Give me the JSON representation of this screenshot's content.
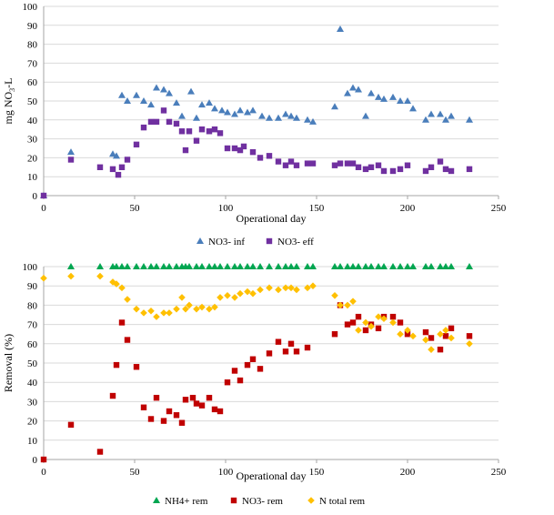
{
  "chart_data": [
    {
      "type": "scatter",
      "xlabel": "Operational day",
      "ylabel": "mg NO3-L",
      "xlim": [
        0,
        250
      ],
      "ylim": [
        0,
        100
      ],
      "x_ticks": [
        "0",
        "50",
        "100",
        "150",
        "200",
        "250"
      ],
      "y_ticks": [
        "0",
        "10",
        "20",
        "30",
        "40",
        "50",
        "60",
        "70",
        "80",
        "90",
        "100"
      ],
      "grid": "horizontal",
      "legend_position": "bottom",
      "series": [
        {
          "name": "NO3- inf",
          "marker": "triangle",
          "color": "#4a7ebb",
          "points": [
            [
              0,
              0
            ],
            [
              15,
              23
            ],
            [
              38,
              22
            ],
            [
              40,
              21
            ],
            [
              43,
              53
            ],
            [
              46,
              50
            ],
            [
              51,
              53
            ],
            [
              55,
              50
            ],
            [
              59,
              48
            ],
            [
              62,
              57
            ],
            [
              66,
              56
            ],
            [
              69,
              54
            ],
            [
              73,
              49
            ],
            [
              76,
              42
            ],
            [
              81,
              55
            ],
            [
              84,
              41
            ],
            [
              87,
              48
            ],
            [
              91,
              49
            ],
            [
              94,
              46
            ],
            [
              98,
              45
            ],
            [
              101,
              44
            ],
            [
              105,
              43
            ],
            [
              108,
              45
            ],
            [
              112,
              44
            ],
            [
              115,
              45
            ],
            [
              120,
              42
            ],
            [
              124,
              41
            ],
            [
              129,
              41
            ],
            [
              133,
              43
            ],
            [
              136,
              42
            ],
            [
              139,
              41
            ],
            [
              145,
              40
            ],
            [
              148,
              39
            ],
            [
              160,
              47
            ],
            [
              163,
              88
            ],
            [
              167,
              54
            ],
            [
              170,
              57
            ],
            [
              173,
              56
            ],
            [
              177,
              42
            ],
            [
              180,
              54
            ],
            [
              184,
              52
            ],
            [
              187,
              51
            ],
            [
              192,
              52
            ],
            [
              196,
              50
            ],
            [
              200,
              50
            ],
            [
              203,
              46
            ],
            [
              210,
              40
            ],
            [
              213,
              43
            ],
            [
              218,
              43
            ],
            [
              221,
              40
            ],
            [
              224,
              42
            ],
            [
              234,
              40
            ]
          ]
        },
        {
          "name": "NO3- eff",
          "marker": "square",
          "color": "#7030a0",
          "points": [
            [
              0,
              0
            ],
            [
              15,
              19
            ],
            [
              31,
              15
            ],
            [
              38,
              14
            ],
            [
              41,
              11
            ],
            [
              43,
              15
            ],
            [
              46,
              19
            ],
            [
              51,
              27
            ],
            [
              55,
              36
            ],
            [
              59,
              39
            ],
            [
              62,
              39
            ],
            [
              66,
              45
            ],
            [
              69,
              39
            ],
            [
              73,
              38
            ],
            [
              76,
              34
            ],
            [
              78,
              24
            ],
            [
              80,
              34
            ],
            [
              84,
              29
            ],
            [
              87,
              35
            ],
            [
              91,
              34
            ],
            [
              94,
              35
            ],
            [
              97,
              33
            ],
            [
              101,
              25
            ],
            [
              105,
              25
            ],
            [
              108,
              24
            ],
            [
              110,
              26
            ],
            [
              115,
              23
            ],
            [
              119,
              20
            ],
            [
              124,
              21
            ],
            [
              129,
              18
            ],
            [
              133,
              16
            ],
            [
              136,
              18
            ],
            [
              139,
              16
            ],
            [
              145,
              17
            ],
            [
              148,
              17
            ],
            [
              160,
              16
            ],
            [
              163,
              17
            ],
            [
              167,
              17
            ],
            [
              170,
              17
            ],
            [
              173,
              15
            ],
            [
              177,
              14
            ],
            [
              180,
              15
            ],
            [
              184,
              16
            ],
            [
              187,
              13
            ],
            [
              192,
              13
            ],
            [
              196,
              14
            ],
            [
              200,
              16
            ],
            [
              210,
              13
            ],
            [
              213,
              15
            ],
            [
              218,
              18
            ],
            [
              221,
              14
            ],
            [
              224,
              13
            ],
            [
              234,
              14
            ]
          ]
        }
      ]
    },
    {
      "type": "scatter",
      "xlabel": "Operational day",
      "ylabel": "Removal (%)",
      "xlim": [
        0,
        250
      ],
      "ylim": [
        0,
        100
      ],
      "x_ticks": [
        "0",
        "50",
        "100",
        "150",
        "200",
        "250"
      ],
      "y_ticks": [
        "0",
        "10",
        "20",
        "30",
        "40",
        "50",
        "60",
        "70",
        "80",
        "90",
        "100"
      ],
      "grid": "horizontal",
      "legend_position": "bottom",
      "series": [
        {
          "name": "NH4+ rem",
          "marker": "triangle",
          "color": "#00a651",
          "points": [
            [
              15,
              100
            ],
            [
              31,
              100
            ],
            [
              38,
              100
            ],
            [
              40,
              100
            ],
            [
              43,
              100
            ],
            [
              46,
              100
            ],
            [
              51,
              100
            ],
            [
              55,
              100
            ],
            [
              59,
              100
            ],
            [
              62,
              100
            ],
            [
              66,
              100
            ],
            [
              69,
              100
            ],
            [
              73,
              100
            ],
            [
              76,
              100
            ],
            [
              78,
              100
            ],
            [
              80,
              100
            ],
            [
              84,
              100
            ],
            [
              87,
              100
            ],
            [
              91,
              100
            ],
            [
              94,
              100
            ],
            [
              97,
              100
            ],
            [
              101,
              100
            ],
            [
              105,
              100
            ],
            [
              108,
              100
            ],
            [
              112,
              100
            ],
            [
              115,
              100
            ],
            [
              119,
              100
            ],
            [
              124,
              100
            ],
            [
              129,
              100
            ],
            [
              133,
              100
            ],
            [
              136,
              100
            ],
            [
              139,
              100
            ],
            [
              145,
              100
            ],
            [
              148,
              100
            ],
            [
              160,
              100
            ],
            [
              163,
              100
            ],
            [
              167,
              100
            ],
            [
              170,
              100
            ],
            [
              173,
              100
            ],
            [
              177,
              100
            ],
            [
              180,
              100
            ],
            [
              184,
              100
            ],
            [
              187,
              100
            ],
            [
              192,
              100
            ],
            [
              196,
              100
            ],
            [
              200,
              100
            ],
            [
              203,
              100
            ],
            [
              210,
              100
            ],
            [
              213,
              100
            ],
            [
              218,
              100
            ],
            [
              221,
              100
            ],
            [
              224,
              100
            ],
            [
              234,
              100
            ]
          ]
        },
        {
          "name": "NO3- rem",
          "marker": "square",
          "color": "#c00000",
          "points": [
            [
              0,
              0
            ],
            [
              15,
              18
            ],
            [
              31,
              4
            ],
            [
              38,
              33
            ],
            [
              40,
              49
            ],
            [
              43,
              71
            ],
            [
              46,
              62
            ],
            [
              51,
              48
            ],
            [
              55,
              27
            ],
            [
              59,
              21
            ],
            [
              62,
              32
            ],
            [
              66,
              20
            ],
            [
              69,
              25
            ],
            [
              73,
              23
            ],
            [
              76,
              19
            ],
            [
              78,
              31
            ],
            [
              82,
              32
            ],
            [
              84,
              29
            ],
            [
              87,
              28
            ],
            [
              91,
              32
            ],
            [
              94,
              26
            ],
            [
              97,
              25
            ],
            [
              101,
              40
            ],
            [
              105,
              46
            ],
            [
              108,
              41
            ],
            [
              112,
              49
            ],
            [
              115,
              52
            ],
            [
              119,
              47
            ],
            [
              124,
              55
            ],
            [
              129,
              61
            ],
            [
              133,
              56
            ],
            [
              136,
              60
            ],
            [
              139,
              56
            ],
            [
              145,
              58
            ],
            [
              160,
              65
            ],
            [
              163,
              80
            ],
            [
              167,
              70
            ],
            [
              170,
              71
            ],
            [
              173,
              74
            ],
            [
              177,
              67
            ],
            [
              180,
              70
            ],
            [
              184,
              68
            ],
            [
              187,
              74
            ],
            [
              192,
              74
            ],
            [
              196,
              71
            ],
            [
              200,
              65
            ],
            [
              210,
              66
            ],
            [
              213,
              63
            ],
            [
              218,
              57
            ],
            [
              221,
              64
            ],
            [
              224,
              68
            ],
            [
              234,
              64
            ]
          ]
        },
        {
          "name": "N total rem",
          "marker": "diamond",
          "color": "#ffc000",
          "points": [
            [
              0,
              94
            ],
            [
              15,
              95
            ],
            [
              31,
              95
            ],
            [
              38,
              92
            ],
            [
              40,
              91
            ],
            [
              43,
              89
            ],
            [
              46,
              83
            ],
            [
              51,
              78
            ],
            [
              55,
              76
            ],
            [
              59,
              77
            ],
            [
              62,
              74
            ],
            [
              66,
              76
            ],
            [
              69,
              76
            ],
            [
              73,
              78
            ],
            [
              76,
              84
            ],
            [
              78,
              78
            ],
            [
              80,
              80
            ],
            [
              84,
              78
            ],
            [
              87,
              79
            ],
            [
              91,
              78
            ],
            [
              94,
              79
            ],
            [
              97,
              84
            ],
            [
              101,
              85
            ],
            [
              105,
              84
            ],
            [
              108,
              86
            ],
            [
              112,
              87
            ],
            [
              115,
              86
            ],
            [
              119,
              88
            ],
            [
              124,
              89
            ],
            [
              129,
              88
            ],
            [
              133,
              89
            ],
            [
              136,
              89
            ],
            [
              139,
              88
            ],
            [
              145,
              89
            ],
            [
              148,
              90
            ],
            [
              160,
              85
            ],
            [
              163,
              80
            ],
            [
              167,
              80
            ],
            [
              170,
              82
            ],
            [
              173,
              67
            ],
            [
              177,
              71
            ],
            [
              180,
              69
            ],
            [
              184,
              74
            ],
            [
              187,
              73
            ],
            [
              192,
              71
            ],
            [
              196,
              65
            ],
            [
              200,
              67
            ],
            [
              203,
              64
            ],
            [
              210,
              62
            ],
            [
              213,
              57
            ],
            [
              218,
              65
            ],
            [
              221,
              67
            ],
            [
              224,
              63
            ],
            [
              234,
              60
            ]
          ]
        }
      ]
    }
  ]
}
